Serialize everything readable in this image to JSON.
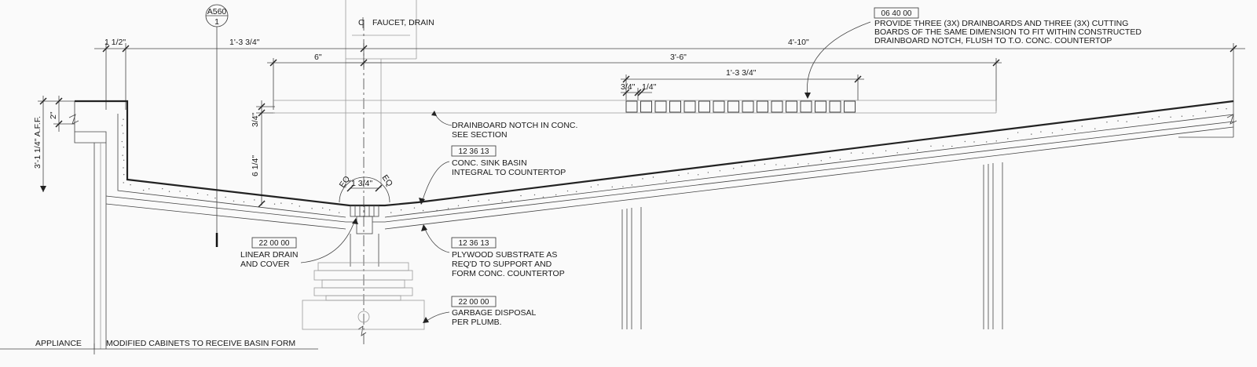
{
  "section_marker": {
    "sheet": "A560",
    "number": "1"
  },
  "centerline_label": "FAUCET, DRAIN",
  "dimensions": {
    "d_1_1_2": "1 1/2\"",
    "d_1_3_4_top": "1'-3 3/4\"",
    "d_4_10": "4'-10\"",
    "d_6": "6\"",
    "d_3_6": "3'-6\"",
    "d_1_3_4_inner": "1'-3 3/4\"",
    "d_3_4_board": "3/4\"",
    "d_1_4_board": "1/4\"",
    "d_2": "2\"",
    "d_3_1_1_4": "3'-1 1/4\" A.F.F.",
    "d_3_4_notch": "3/4\"",
    "d_6_1_4": "6 1/4\"",
    "d_1_3_4_drain": "1 3/4\"",
    "eq_left": "EQ",
    "eq_right": "EQ"
  },
  "notes": {
    "drainboards": {
      "tag": "06 40 00",
      "lines": [
        "PROVIDE THREE (3X) DRAINBOARDS AND THREE (3X) CUTTING",
        "BOARDS OF THE SAME DIMENSION TO FIT WITHIN CONSTRUCTED",
        "DRAINBOARD NOTCH, FLUSH TO T.O. CONC. COUNTERTOP"
      ]
    },
    "notch": {
      "lines": [
        "DRAINBOARD NOTCH IN CONC.",
        "SEE SECTION"
      ]
    },
    "basin": {
      "tag": "12 36 13",
      "lines": [
        "CONC. SINK BASIN",
        "INTEGRAL TO COUNTERTOP"
      ]
    },
    "drain": {
      "tag": "22 00 00",
      "lines": [
        "LINEAR DRAIN",
        "AND COVER"
      ]
    },
    "plywood": {
      "tag": "12 36 13",
      "lines": [
        "PLYWOOD SUBSTRATE AS",
        "REQ'D TO SUPPORT AND",
        "FORM CONC. COUNTERTOP"
      ]
    },
    "disposal": {
      "tag": "22 00 00",
      "lines": [
        "GARBAGE DISPOSAL",
        "PER PLUMB."
      ]
    }
  },
  "bottom_labels": {
    "appliance": "APPLIANCE",
    "cabinets": "MODIFIED CABINETS TO RECEIVE BASIN FORM"
  }
}
